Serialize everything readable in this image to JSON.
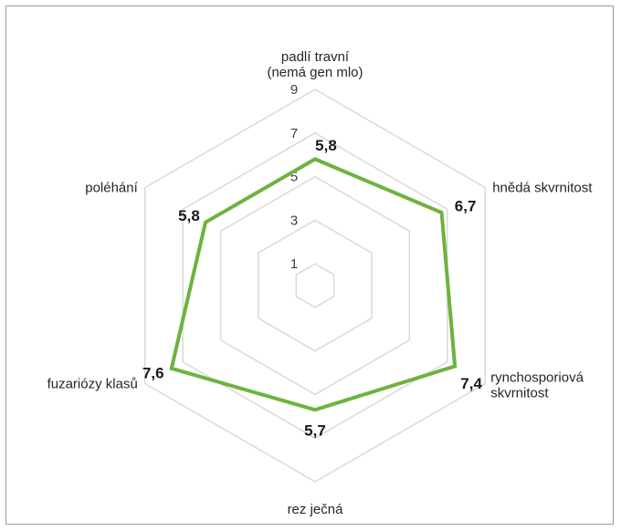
{
  "chart_data": {
    "type": "radar",
    "title": "",
    "categories": [
      "padlí travní\n(nemá gen mlo)",
      "hnědá skvrnitost",
      "rynchosporiová\nskvrnitost",
      "rez ječná",
      "fuzariózy klasů",
      "poléhání"
    ],
    "series": [
      {
        "values": [
          5.8,
          6.7,
          7.4,
          5.7,
          7.6,
          5.8
        ],
        "color": "#6db33f"
      }
    ],
    "value_labels": [
      "5,8",
      "6,7",
      "7,4",
      "5,7",
      "7,6",
      "5,8"
    ],
    "ticks": [
      1,
      3,
      5,
      7,
      9
    ],
    "tick_labels": [
      "1",
      "3",
      "5",
      "7",
      "9"
    ],
    "rlim": [
      0,
      9
    ],
    "grid": true,
    "legend": "none",
    "grid_color": "#d9d9d9"
  }
}
